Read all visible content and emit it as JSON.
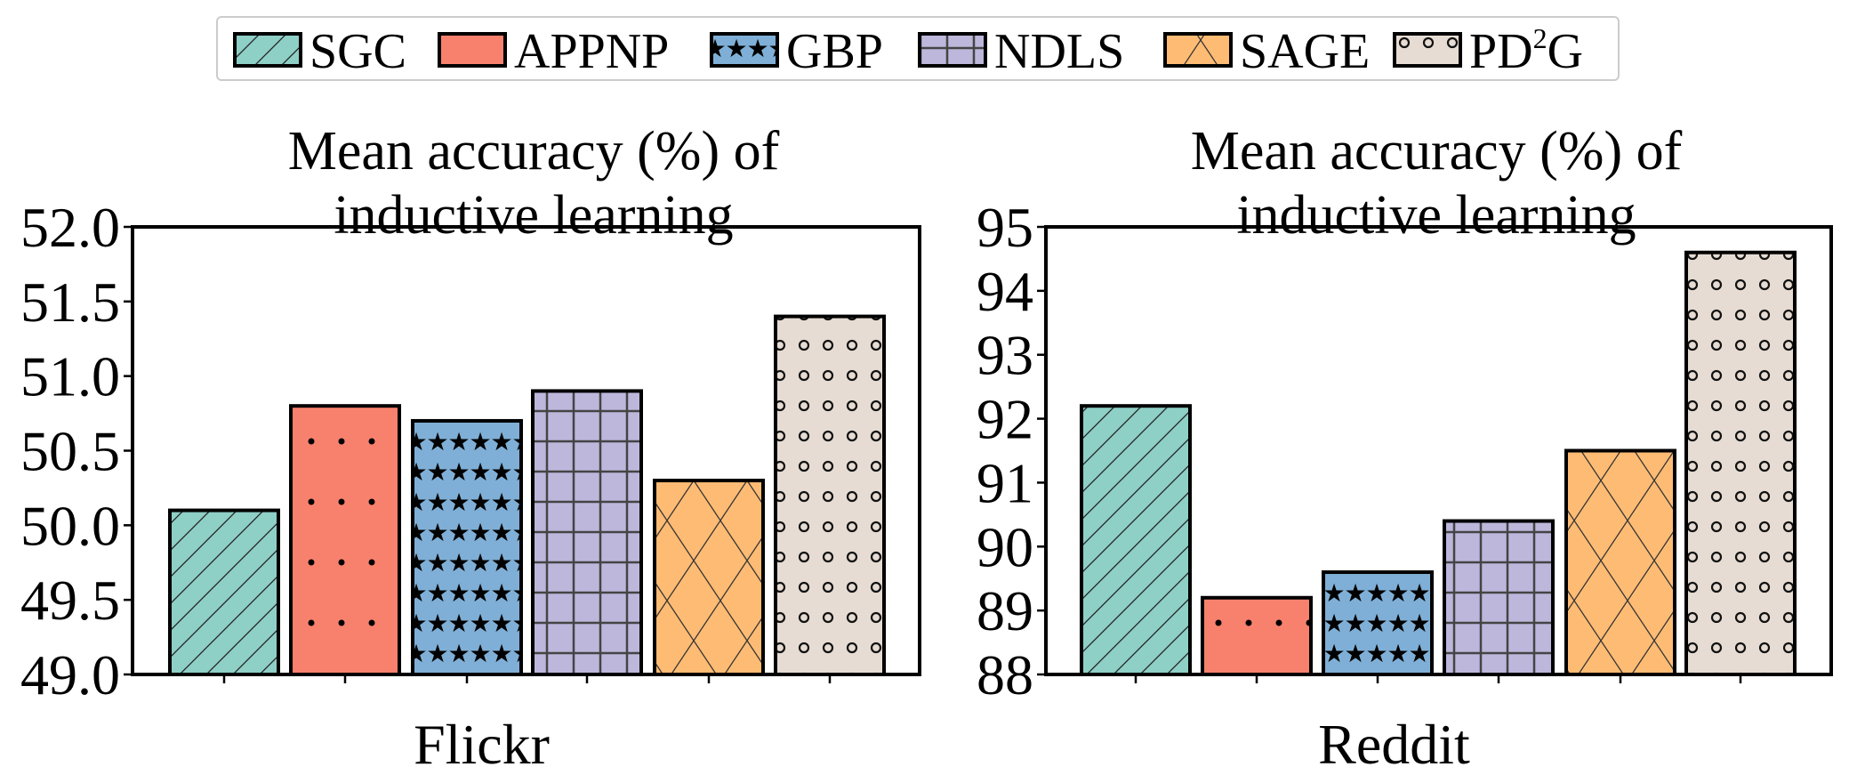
{
  "legend": {
    "placement": "top-center",
    "entries": [
      {
        "name": "SGC",
        "base": "",
        "sup": "",
        "color": "#8ecfc6",
        "pattern": "diagonal-hatch"
      },
      {
        "name": "APPNP",
        "base": "",
        "sup": "",
        "color": "#f8816e",
        "pattern": "dots"
      },
      {
        "name": "GBP",
        "base": "",
        "sup": "",
        "color": "#7fafd6",
        "pattern": "stars"
      },
      {
        "name": "NDLS",
        "base": "",
        "sup": "",
        "color": "#bdb7dc",
        "pattern": "grid"
      },
      {
        "name": "SAGE",
        "base": "",
        "sup": "",
        "color": "#fdbb74",
        "pattern": "crosshatch"
      },
      {
        "name": "PD2G",
        "base": "PD",
        "sup": "2",
        "tail": "G",
        "color": "#e6dcd3",
        "pattern": "circles"
      }
    ]
  },
  "chart_data": [
    {
      "type": "bar",
      "title_lines": [
        "Mean accuracy (%) of",
        "inductive learning"
      ],
      "xlabel": "Flickr",
      "ylabel": "",
      "categories": [
        "SGC",
        "APPNP",
        "GBP",
        "NDLS",
        "SAGE",
        "PD2G"
      ],
      "values": [
        50.1,
        50.8,
        50.7,
        50.9,
        50.3,
        51.4
      ],
      "ylim": [
        49.0,
        52.0
      ],
      "yticks": [
        "49.0",
        "49.5",
        "50.0",
        "50.5",
        "51.0",
        "51.5",
        "52.0"
      ],
      "grid": false
    },
    {
      "type": "bar",
      "title_lines": [
        "Mean accuracy (%) of",
        "inductive learning"
      ],
      "xlabel": "Reddit",
      "ylabel": "",
      "categories": [
        "SGC",
        "APPNP",
        "GBP",
        "NDLS",
        "SAGE",
        "PD2G"
      ],
      "values": [
        92.2,
        89.2,
        89.6,
        90.4,
        91.5,
        94.6
      ],
      "ylim": [
        88,
        95
      ],
      "yticks": [
        "88",
        "89",
        "90",
        "91",
        "92",
        "93",
        "94",
        "95"
      ],
      "grid": false
    }
  ]
}
